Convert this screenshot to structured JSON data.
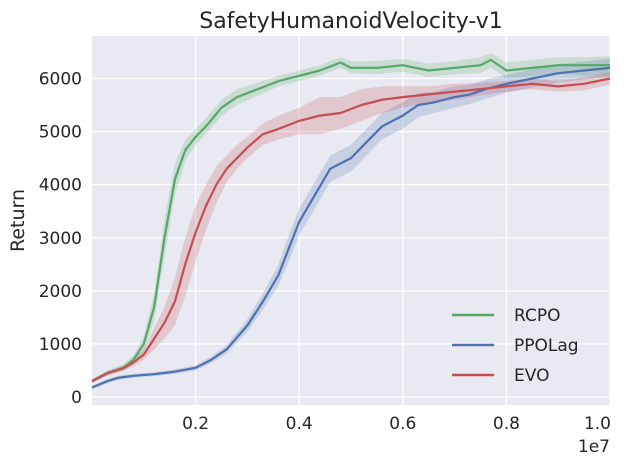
{
  "chart_data": {
    "type": "line",
    "title": "SafetyHumanoidVelocity-v1",
    "xlabel": "",
    "ylabel": "Return",
    "x_offset_label": "1e7",
    "xlim": [
      0.0,
      1.0
    ],
    "ylim": [
      -150,
      6800
    ],
    "x_ticks": [
      0.2,
      0.4,
      0.6,
      0.8,
      1.0
    ],
    "x_tick_labels": [
      "0.2",
      "0.4",
      "0.6",
      "0.8",
      "1.0"
    ],
    "y_ticks": [
      0,
      1000,
      2000,
      3000,
      4000,
      5000,
      6000
    ],
    "y_tick_labels": [
      "0",
      "1000",
      "2000",
      "3000",
      "4000",
      "5000",
      "6000"
    ],
    "grid": true,
    "legend_position": "lower-right",
    "background": "#e9e9f1",
    "series": [
      {
        "name": "RCPO",
        "color": "#55a868",
        "x": [
          0,
          0.03,
          0.06,
          0.08,
          0.1,
          0.12,
          0.14,
          0.16,
          0.18,
          0.2,
          0.22,
          0.25,
          0.28,
          0.32,
          0.36,
          0.4,
          0.44,
          0.48,
          0.5,
          0.55,
          0.6,
          0.65,
          0.7,
          0.75,
          0.77,
          0.8,
          0.85,
          0.9,
          0.95,
          1.0
        ],
        "y": [
          300,
          450,
          550,
          700,
          1000,
          1700,
          3000,
          4100,
          4650,
          4900,
          5100,
          5450,
          5650,
          5800,
          5950,
          6050,
          6150,
          6300,
          6200,
          6200,
          6250,
          6150,
          6200,
          6250,
          6350,
          6150,
          6200,
          6250,
          6250,
          6250
        ],
        "lower": [
          260,
          400,
          490,
          610,
          850,
          1450,
          2650,
          3800,
          4450,
          4750,
          4950,
          5300,
          5500,
          5680,
          5850,
          5950,
          6050,
          6200,
          6100,
          6080,
          6130,
          6030,
          6080,
          6100,
          6200,
          6000,
          6050,
          6100,
          6050,
          6050
        ],
        "upper": [
          340,
          500,
          610,
          790,
          1150,
          1950,
          3350,
          4400,
          4850,
          5050,
          5250,
          5600,
          5800,
          5920,
          6050,
          6150,
          6250,
          6400,
          6320,
          6330,
          6370,
          6280,
          6330,
          6400,
          6480,
          6300,
          6350,
          6400,
          6400,
          6420
        ]
      },
      {
        "name": "PPOLag",
        "color": "#4c72b0",
        "x": [
          0,
          0.03,
          0.05,
          0.08,
          0.12,
          0.16,
          0.2,
          0.23,
          0.26,
          0.3,
          0.33,
          0.36,
          0.38,
          0.4,
          0.43,
          0.46,
          0.5,
          0.53,
          0.56,
          0.6,
          0.63,
          0.66,
          0.7,
          0.73,
          0.76,
          0.8,
          0.85,
          0.9,
          0.95,
          1.0
        ],
        "y": [
          180,
          300,
          360,
          400,
          430,
          480,
          550,
          700,
          900,
          1350,
          1800,
          2300,
          2800,
          3300,
          3800,
          4300,
          4500,
          4800,
          5100,
          5300,
          5500,
          5550,
          5650,
          5700,
          5800,
          5900,
          6000,
          6100,
          6150,
          6200
        ],
        "lower": [
          150,
          260,
          320,
          360,
          390,
          440,
          500,
          640,
          820,
          1230,
          1650,
          2100,
          2550,
          3050,
          3550,
          4050,
          4250,
          4550,
          4850,
          5050,
          5270,
          5350,
          5450,
          5520,
          5620,
          5730,
          5830,
          5930,
          5980,
          6030
        ],
        "upper": [
          210,
          340,
          400,
          440,
          470,
          520,
          600,
          760,
          980,
          1470,
          1950,
          2500,
          3050,
          3550,
          4050,
          4550,
          4750,
          5050,
          5350,
          5550,
          5730,
          5750,
          5850,
          5880,
          5980,
          6070,
          6170,
          6270,
          6320,
          6370
        ]
      },
      {
        "name": "EVO",
        "color": "#c44e52",
        "x": [
          0,
          0.03,
          0.06,
          0.08,
          0.1,
          0.12,
          0.14,
          0.16,
          0.18,
          0.2,
          0.22,
          0.24,
          0.26,
          0.28,
          0.3,
          0.33,
          0.36,
          0.4,
          0.44,
          0.48,
          0.52,
          0.56,
          0.6,
          0.65,
          0.7,
          0.75,
          0.8,
          0.85,
          0.9,
          0.95,
          1.0
        ],
        "y": [
          300,
          450,
          540,
          650,
          800,
          1100,
          1400,
          1800,
          2500,
          3100,
          3600,
          4000,
          4300,
          4500,
          4700,
          4950,
          5050,
          5200,
          5300,
          5350,
          5500,
          5600,
          5650,
          5700,
          5750,
          5800,
          5850,
          5900,
          5850,
          5900,
          6000
        ],
        "lower": [
          270,
          410,
          490,
          580,
          700,
          900,
          1100,
          1350,
          1900,
          2550,
          3150,
          3650,
          4050,
          4300,
          4500,
          4750,
          4850,
          4950,
          4950,
          5050,
          5200,
          5350,
          5450,
          5550,
          5600,
          5680,
          5750,
          5800,
          5750,
          5780,
          5880
        ],
        "upper": [
          330,
          490,
          590,
          720,
          900,
          1300,
          1700,
          2250,
          3000,
          3600,
          4000,
          4350,
          4550,
          4750,
          4900,
          5150,
          5300,
          5450,
          5650,
          5650,
          5800,
          5850,
          5850,
          5850,
          5900,
          5920,
          5950,
          6000,
          5950,
          6020,
          6120
        ]
      }
    ]
  }
}
